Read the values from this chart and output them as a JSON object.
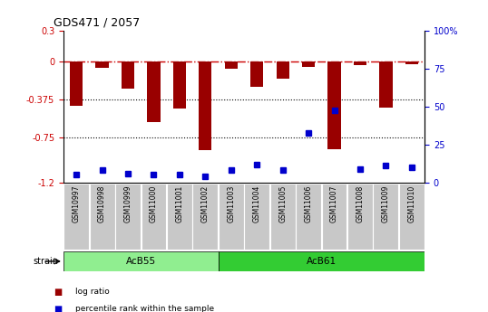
{
  "title": "GDS471 / 2057",
  "samples": [
    "GSM10997",
    "GSM10998",
    "GSM10999",
    "GSM11000",
    "GSM11001",
    "GSM11002",
    "GSM11003",
    "GSM11004",
    "GSM11005",
    "GSM11006",
    "GSM11007",
    "GSM11008",
    "GSM11009",
    "GSM11010"
  ],
  "log_ratio": [
    -0.44,
    -0.06,
    -0.27,
    -0.6,
    -0.47,
    -0.88,
    -0.07,
    -0.25,
    -0.17,
    -0.05,
    -0.87,
    -0.04,
    -0.46,
    -0.03
  ],
  "percentile_rank": [
    5,
    8,
    6,
    5,
    5,
    4,
    8,
    12,
    8,
    33,
    48,
    9,
    11,
    10
  ],
  "ylim_left": [
    -1.2,
    0.3
  ],
  "ylim_right": [
    0,
    100
  ],
  "groups": [
    {
      "label": "AcB55",
      "start": 0,
      "end": 5,
      "color": "#90EE90"
    },
    {
      "label": "AcB61",
      "start": 6,
      "end": 13,
      "color": "#33CC33"
    }
  ],
  "bar_color": "#990000",
  "dot_color": "#0000CC",
  "hline_color": "#CC0000",
  "dotted_lines": [
    -0.375,
    -0.75
  ],
  "left_ticks": [
    0.3,
    0,
    -0.375,
    -0.75,
    -1.2
  ],
  "left_tick_labels": [
    "0.3",
    "0",
    "-0.375",
    "-0.75",
    "-1.2"
  ],
  "right_ticks": [
    0,
    25,
    50,
    75,
    100
  ],
  "right_tick_labels": [
    "0",
    "25",
    "50",
    "75",
    "100%"
  ],
  "legend_items": [
    {
      "color": "#990000",
      "label": "log ratio"
    },
    {
      "color": "#0000CC",
      "label": "percentile rank within the sample"
    }
  ],
  "strain_label": "strain",
  "background_color": "#ffffff",
  "tick_area_color": "#c8c8c8",
  "acb55_color": "#90EE90",
  "acb61_color": "#33CC33"
}
